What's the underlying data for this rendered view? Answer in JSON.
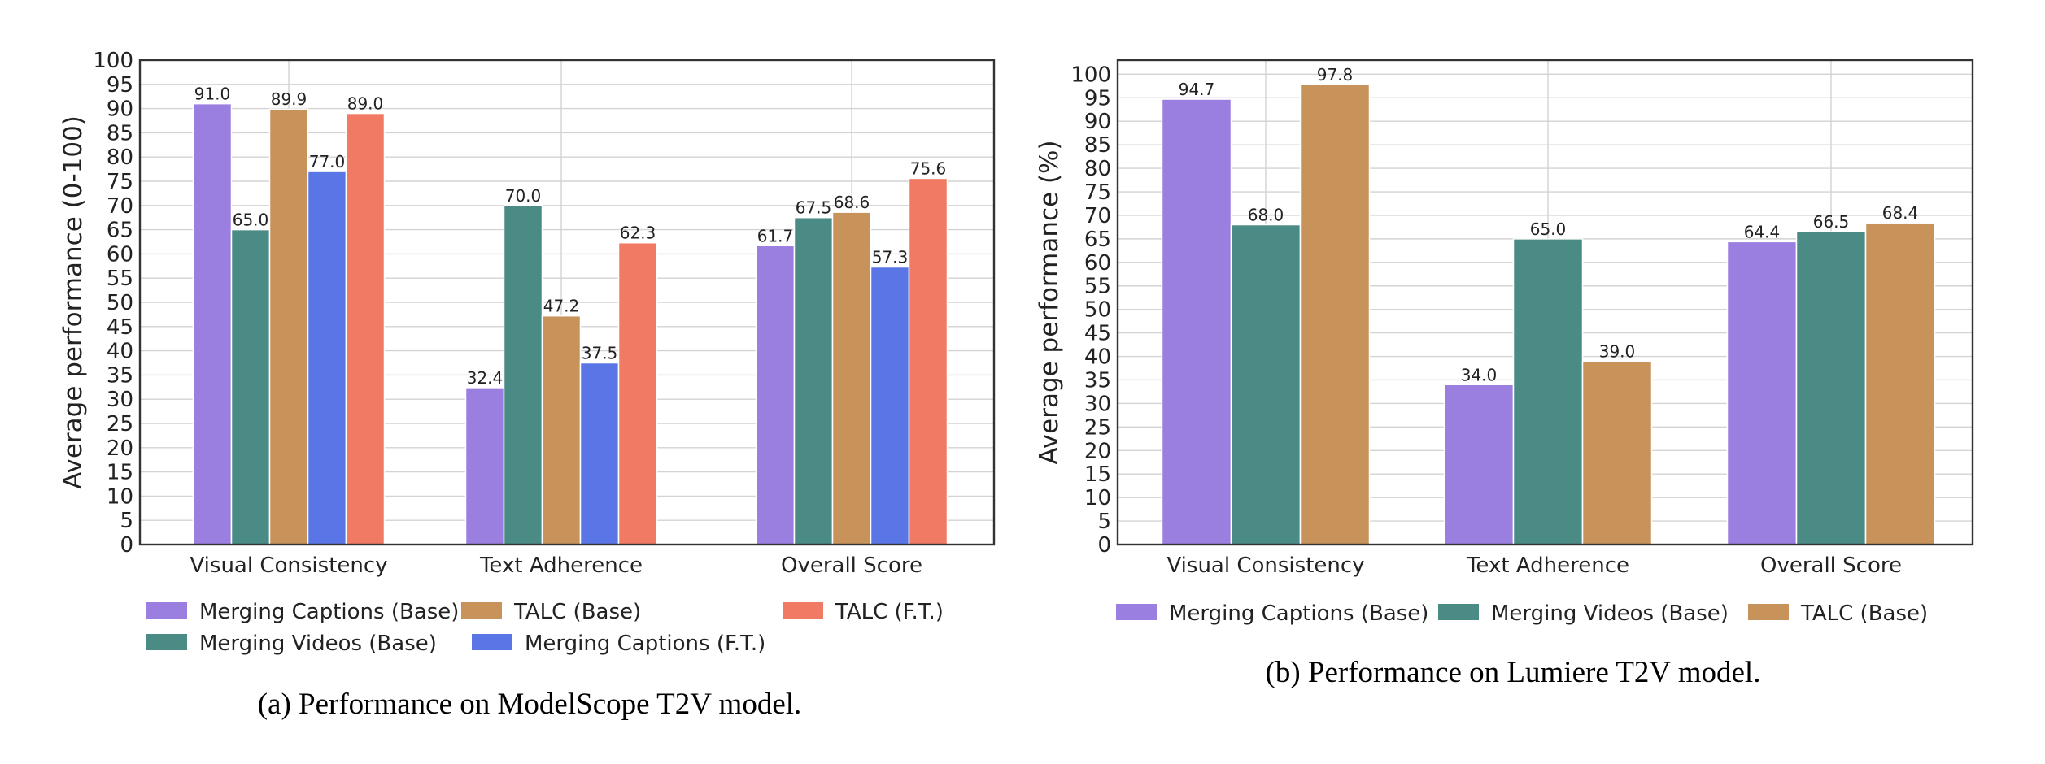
{
  "colors": {
    "merging_captions_base": "#9b7fe0",
    "merging_videos_base": "#4a8b86",
    "talc_base": "#c8935a",
    "merging_captions_ft": "#5a76e6",
    "talc_ft": "#f07a64"
  },
  "chart_data": [
    {
      "type": "bar",
      "ylabel": "Average performance (0-100)",
      "caption": "(a) Performance on ModelScope T2V model.",
      "categories": [
        "Visual Consistency",
        "Text Adherence",
        "Overall Score"
      ],
      "ylim": [
        0,
        100
      ],
      "ytick_step": 5,
      "grid": true,
      "legend_position": "below",
      "series": [
        {
          "name": "Merging Captions (Base)",
          "color_key": "merging_captions_base",
          "values": [
            91.0,
            32.4,
            61.7
          ],
          "labels": [
            "91.0",
            "32.4",
            "61.7"
          ]
        },
        {
          "name": "Merging Videos (Base)",
          "color_key": "merging_videos_base",
          "values": [
            65.0,
            70.0,
            67.5
          ],
          "labels": [
            "65.0",
            "70.0",
            "67.5"
          ]
        },
        {
          "name": "TALC (Base)",
          "color_key": "talc_base",
          "values": [
            89.9,
            47.2,
            68.6
          ],
          "labels": [
            "89.9",
            "47.2",
            "68.6"
          ]
        },
        {
          "name": "Merging Captions (F.T.)",
          "color_key": "merging_captions_ft",
          "values": [
            77.0,
            37.5,
            57.3
          ],
          "labels": [
            "77.0",
            "37.5",
            "57.3"
          ]
        },
        {
          "name": "TALC (F.T.)",
          "color_key": "talc_ft",
          "values": [
            89.0,
            62.3,
            75.6
          ],
          "labels": [
            "89.0",
            "62.3",
            "75.6"
          ]
        }
      ]
    },
    {
      "type": "bar",
      "ylabel": "Average performance (%)",
      "caption": "(b) Performance on Lumiere T2V model.",
      "categories": [
        "Visual Consistency",
        "Text Adherence",
        "Overall Score"
      ],
      "ylim": [
        0,
        103
      ],
      "ytick_step": 5,
      "ytick_max": 100,
      "grid": true,
      "legend_position": "below",
      "series": [
        {
          "name": "Merging Captions (Base)",
          "color_key": "merging_captions_base",
          "values": [
            94.7,
            34.0,
            64.4
          ],
          "labels": [
            "94.7",
            "34.0",
            "64.4"
          ]
        },
        {
          "name": "Merging Videos (Base)",
          "color_key": "merging_videos_base",
          "values": [
            68.0,
            65.0,
            66.5
          ],
          "labels": [
            "68.0",
            "65.0",
            "66.5"
          ]
        },
        {
          "name": "TALC (Base)",
          "color_key": "talc_base",
          "values": [
            97.8,
            39.0,
            68.4
          ],
          "labels": [
            "97.8",
            "39.0",
            "68.4"
          ]
        }
      ]
    }
  ]
}
